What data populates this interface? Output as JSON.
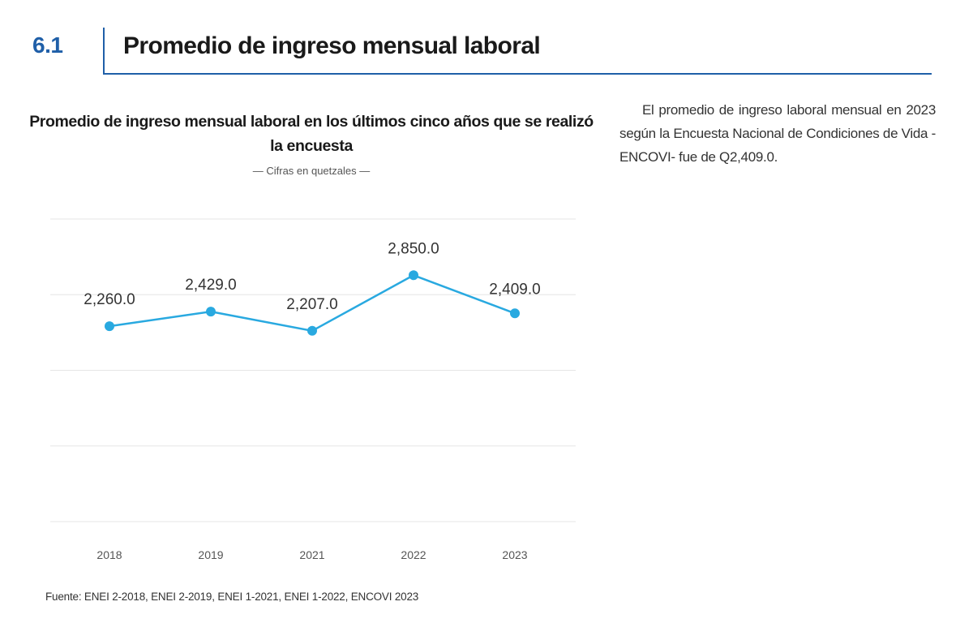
{
  "section": {
    "number": "6.1",
    "title": "Promedio de ingreso mensual laboral"
  },
  "side_text": "El promedio de ingreso laboral mensual en 2023 según la Encuesta Nacional de Condiciones de Vida -ENCOVI- fue de Q2,409.0.",
  "source": "Fuente: ENEI 2-2018, ENEI 2-2019, ENEI 1-2021, ENEI 1-2022, ENCOVI 2023",
  "colors": {
    "accent": "#1f5fa8",
    "line": "#29a9e0",
    "grid": "#e6e6e6"
  },
  "chart_data": {
    "type": "line",
    "title": "Promedio de ingreso mensual laboral en los últimos cinco años que se realizó la encuesta",
    "subtitle": "— Cifras en quetzales —",
    "categories": [
      "2018",
      "2019",
      "2021",
      "2022",
      "2023"
    ],
    "values": [
      2260.0,
      2429.0,
      2207.0,
      2850.0,
      2409.0
    ],
    "value_labels": [
      "2,260.0",
      "2,429.0",
      "2,207.0",
      "2,850.0",
      "2,409.0"
    ],
    "ylim": [
      0,
      3500
    ],
    "grid": true,
    "xlabel": "",
    "ylabel": ""
  }
}
